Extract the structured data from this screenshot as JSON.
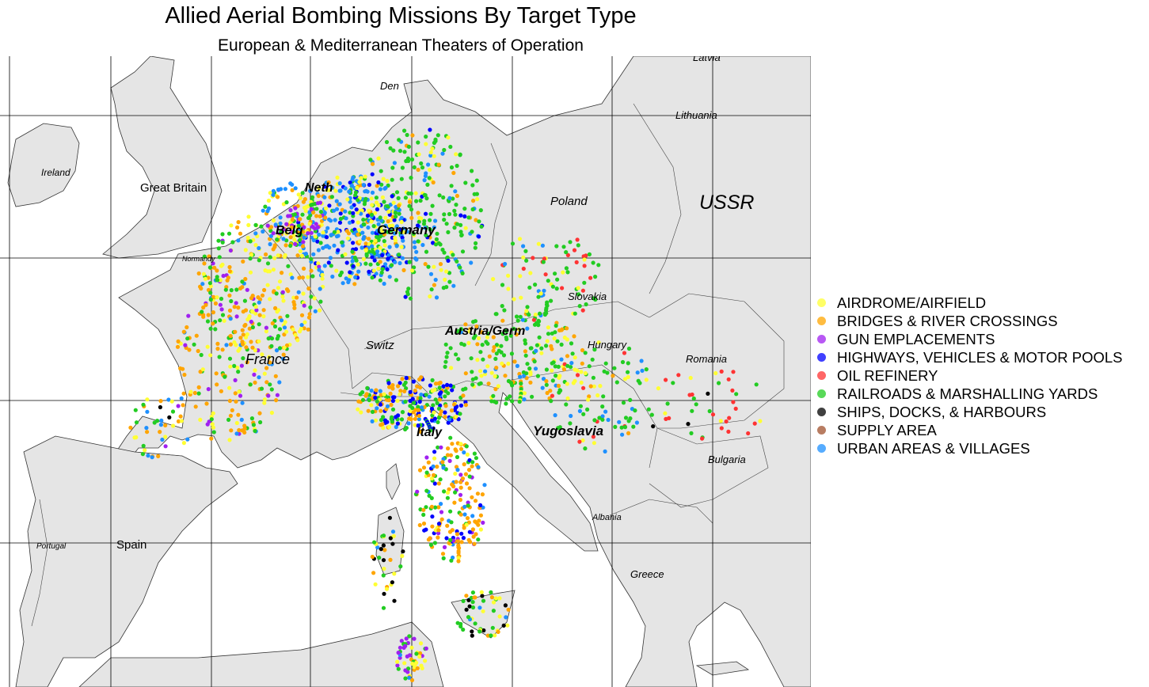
{
  "title": "Allied Aerial Bombing Missions By Target Type",
  "subtitle": "European & Mediterranean Theaters of Operation",
  "legend": [
    {
      "label": "AIRDROME/AIRFIELD",
      "color": "#ffff33"
    },
    {
      "label": "BRIDGES & RIVER CROSSINGS",
      "color": "#ffa500"
    },
    {
      "label": "GUN EMPLACEMENTS",
      "color": "#a020f0"
    },
    {
      "label": "HIGHWAYS, VEHICLES & MOTOR POOLS",
      "color": "#0000ff"
    },
    {
      "label": "OIL REFINERY",
      "color": "#ff3333"
    },
    {
      "label": "RAILROADS & MARSHALLING YARDS",
      "color": "#22cc22"
    },
    {
      "label": "SHIPS, DOCKS, & HARBOURS",
      "color": "#000000"
    },
    {
      "label": "SUPPLY AREA",
      "color": "#a0522d"
    },
    {
      "label": "URBAN AREAS & VILLAGES",
      "color": "#1e90ff"
    }
  ],
  "places": {
    "latvia": "Latvia",
    "den": "Den",
    "lithuania": "Lithuania",
    "ireland": "Ireland",
    "great_britain": "Great Britain",
    "neth": "Neth",
    "poland": "Poland",
    "ussr": "USSR",
    "belg": "Belg",
    "germany": "Germany",
    "normandy": "Normandy",
    "slovakia": "Slovakia",
    "austria_germ": "Austria/Germ",
    "switz": "Switz",
    "hungary": "Hungary",
    "france": "France",
    "romania": "Romania",
    "italy": "Italy",
    "yugoslavia": "Yugoslavia",
    "bulgaria": "Bulgaria",
    "albania": "Albania",
    "portugal": "Portugal",
    "spain": "Spain",
    "greece": "Greece"
  },
  "colors": {
    "land": "#e5e5e5",
    "sea": "#ffffff",
    "border": "#333333"
  }
}
